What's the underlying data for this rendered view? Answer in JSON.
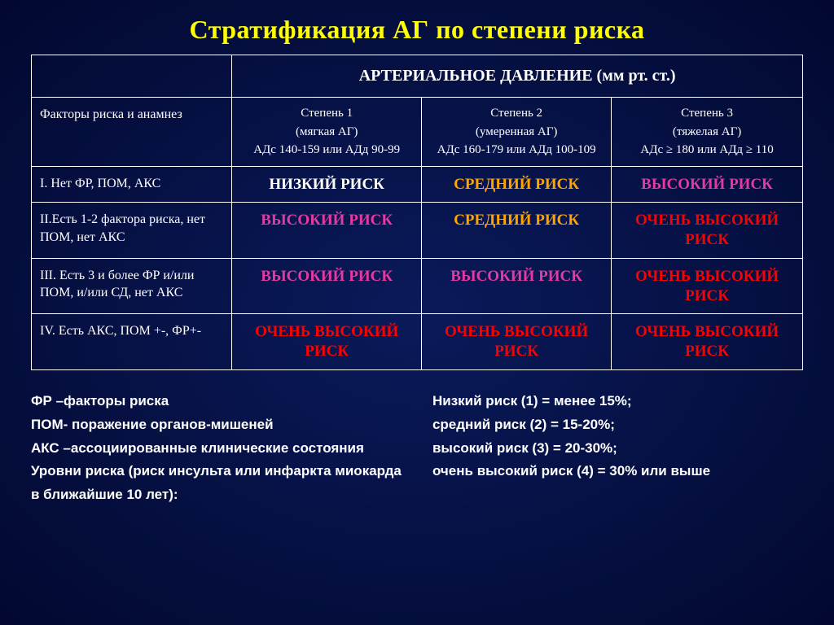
{
  "title": {
    "text": "Стратификация АГ по степени риска",
    "color": "#ffff00"
  },
  "table": {
    "main_header": "АРТЕРИАЛЬНОЕ ДАВЛЕНИЕ   (мм рт. ст.)",
    "row_header_label": "Факторы риска и анамнез",
    "col_headers": [
      {
        "l1": "Степень 1",
        "l2": "(мягкая АГ)",
        "l3": "АДс 140-159   или АДд  90-99"
      },
      {
        "l1": "Степень 2",
        "l2": "(умеренная АГ)",
        "l3": "АДс 160-179 или АДд  100-109"
      },
      {
        "l1": "Степень 3",
        "l2": "(тяжелая АГ)",
        "l3": "АДс ≥ 180  или АДд ≥ 110"
      }
    ],
    "rows": [
      {
        "label": "I. Нет ФР, ПОМ, АКС",
        "cells": [
          {
            "text": "НИЗКИЙ РИСК",
            "color": "#ffffff"
          },
          {
            "text": "СРЕДНИЙ РИСК",
            "color": "#ffa500"
          },
          {
            "text": "ВЫСОКИЙ РИСК",
            "color": "#e53aa2"
          }
        ]
      },
      {
        "label": " II.Есть 1-2 фактора риска, нет ПОМ, нет АКС",
        "cells": [
          {
            "text": "ВЫСОКИЙ РИСК",
            "color": "#e53aa2"
          },
          {
            "text": "СРЕДНИЙ РИСК",
            "color": "#ffa500"
          },
          {
            "text": "ОЧЕНЬ ВЫСОКИЙ РИСК",
            "color": "#ff0000"
          }
        ]
      },
      {
        "label": "III. Есть  3 и более ФР и/или ПОМ, и/или СД, нет АКС",
        "cells": [
          {
            "text": "ВЫСОКИЙ РИСК",
            "color": "#e53aa2"
          },
          {
            "text": "ВЫСОКИЙ РИСК",
            "color": "#e53aa2"
          },
          {
            "text": "ОЧЕНЬ ВЫСОКИЙ РИСК",
            "color": "#ff0000"
          }
        ]
      },
      {
        "label": " IV. Есть  АКС, ПОМ +-, ФР+-",
        "cells": [
          {
            "text": "ОЧЕНЬ ВЫСОКИЙ РИСК",
            "color": "#ff0000"
          },
          {
            "text": "ОЧЕНЬ ВЫСОКИЙ РИСК",
            "color": "#ff0000"
          },
          {
            "text": "ОЧЕНЬ ВЫСОКИЙ РИСК",
            "color": "#ff0000"
          }
        ]
      }
    ]
  },
  "footer": {
    "left": [
      "ФР –факторы риска",
      "ПОМ- поражение органов-мишеней",
      "АКС –ассоциированные клинические состояния",
      "Уровни риска (риск инсульта или инфаркта миокарда в ближайшие 10 лет):"
    ],
    "right": [
      "Низкий риск (1) = менее 15%;",
      "средний риск  (2) =  15-20%;",
      "высокий риск (3) = 20-30%;",
      "очень высокий риск (4) = 30% или выше"
    ]
  },
  "col_widths": [
    "26%",
    "24.6%",
    "24.6%",
    "24.8%"
  ]
}
